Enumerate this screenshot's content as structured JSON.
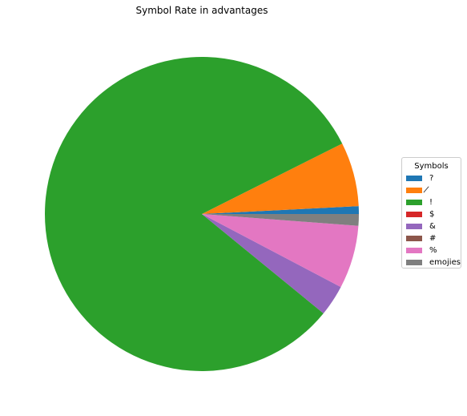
{
  "chart_data": {
    "type": "pie",
    "title": "Symbol Rate in advantages",
    "legend_title": "Symbols",
    "legend_position": "right",
    "start_angle_deg": 0,
    "direction": "counterclockwise",
    "slices": [
      {
        "label": "?",
        "value": 0.8,
        "color": "#1f77b4"
      },
      {
        "label": "̸",
        "value": 6.6,
        "color": "#ff7f0e"
      },
      {
        "label": "!",
        "value": 81.7,
        "color": "#2ca02c"
      },
      {
        "label": "$",
        "value": 0.0,
        "color": "#d62728"
      },
      {
        "label": "&",
        "value": 3.2,
        "color": "#9467bd"
      },
      {
        "label": "#",
        "value": 0.0,
        "color": "#8c564b"
      },
      {
        "label": "%",
        "value": 6.5,
        "color": "#e377c2"
      },
      {
        "label": "emojies",
        "value": 1.2,
        "color": "#7f7f7f"
      }
    ]
  }
}
